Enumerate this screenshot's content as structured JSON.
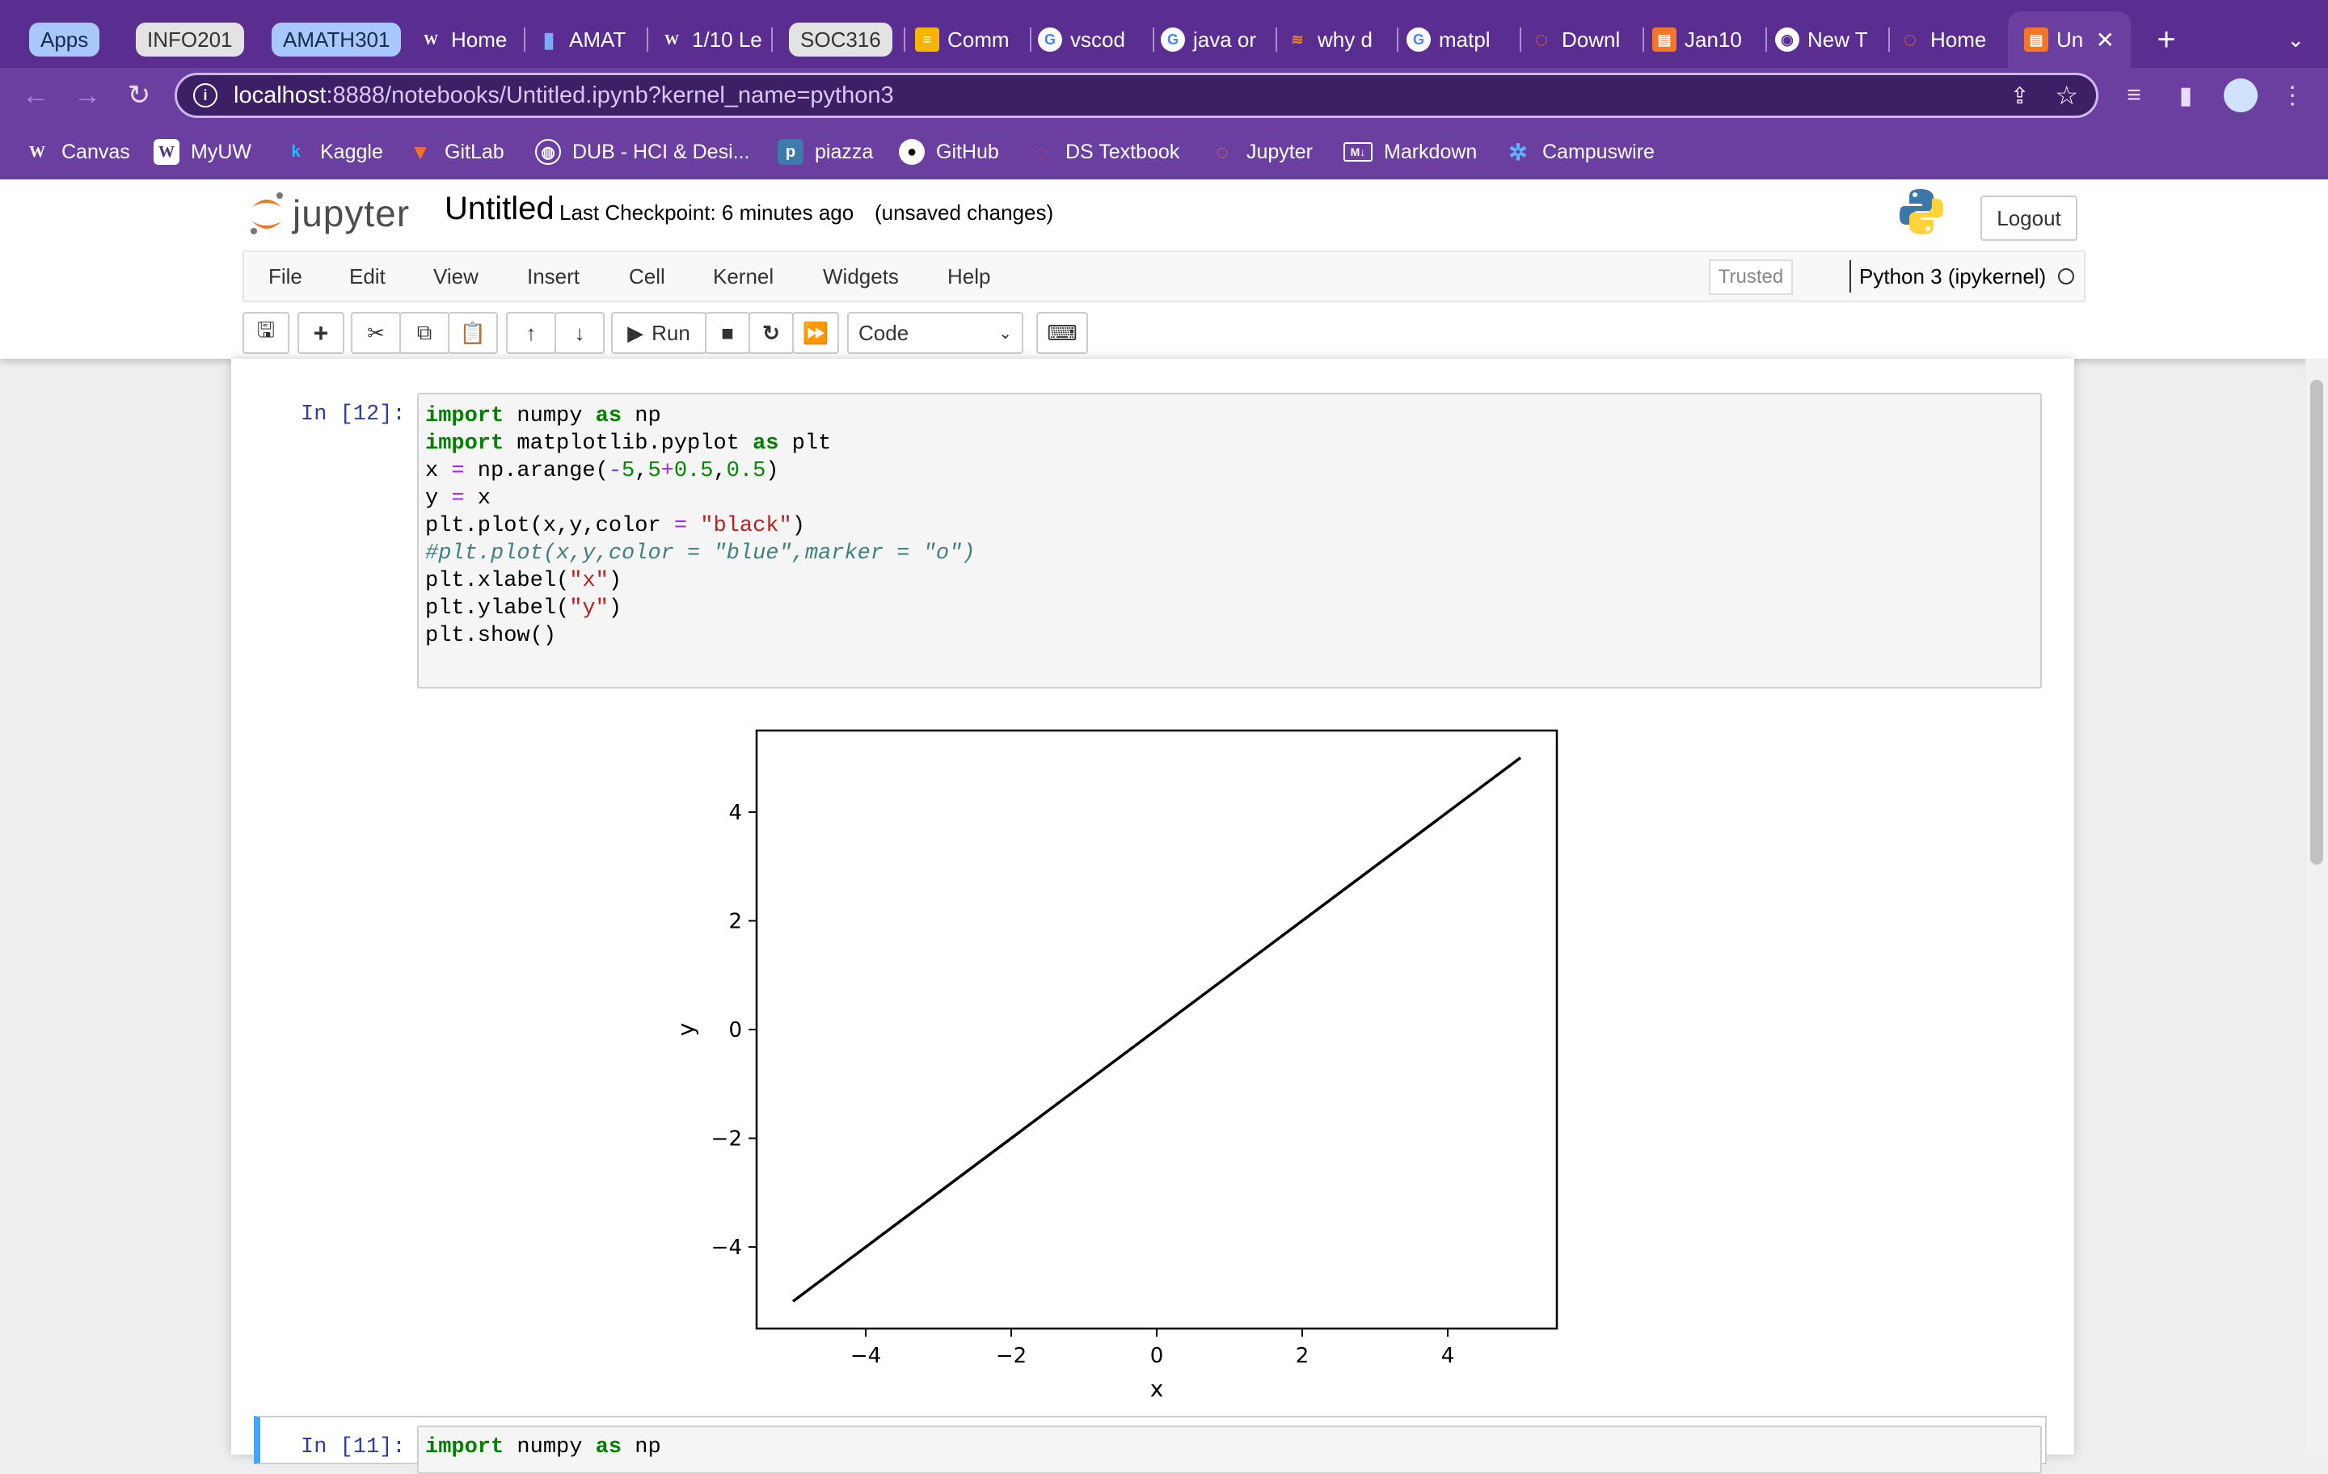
{
  "browser": {
    "tab_groups": [
      "Apps",
      "INFO201",
      "AMATH301",
      "SOC316"
    ],
    "tabs": [
      "Home",
      "AMAT",
      "1/10 Le",
      "Comm",
      "vscod",
      "java or",
      "why d",
      "matpl",
      "Downl",
      "Jan10",
      "New T",
      "Home",
      "Un"
    ],
    "url_host": "localhost",
    "url_rest": ":8888/notebooks/Untitled.ipynb?kernel_name=python3",
    "bookmarks": [
      "Canvas",
      "MyUW",
      "Kaggle",
      "GitLab",
      "DUB - HCI & Desi...",
      "piazza",
      "GitHub",
      "DS Textbook",
      "Jupyter",
      "Markdown",
      "Campuswire"
    ]
  },
  "jupyter": {
    "logo_text": "jupyter",
    "notebook_name": "Untitled",
    "checkpoint": "Last Checkpoint: 6 minutes ago",
    "unsaved": "(unsaved changes)",
    "logout": "Logout",
    "menu": [
      "File",
      "Edit",
      "View",
      "Insert",
      "Cell",
      "Kernel",
      "Widgets",
      "Help"
    ],
    "trusted": "Trusted",
    "kernel": "Python 3 (ipykernel)",
    "run_label": "Run",
    "cell_type": "Code"
  },
  "cell1": {
    "prompt": "In [12]:",
    "code": [
      "import numpy as np",
      "import matplotlib.pyplot as plt",
      "x = np.arange(-5,5+0.5,0.5)",
      "y = x",
      "plt.plot(x,y,color = \"black\")",
      "#plt.plot(x,y,color = \"blue\",marker = \"o\")",
      "plt.xlabel(\"x\")",
      "plt.ylabel(\"y\")",
      "plt.show()"
    ]
  },
  "cell2": {
    "prompt": "In [11]:",
    "first_line": "import numpy as np"
  },
  "chart_data": {
    "type": "line",
    "x": [
      -5,
      -4.5,
      -4,
      -3.5,
      -3,
      -2.5,
      -2,
      -1.5,
      -1,
      -0.5,
      0,
      0.5,
      1,
      1.5,
      2,
      2.5,
      3,
      3.5,
      4,
      4.5,
      5
    ],
    "series": [
      {
        "values": [
          -5,
          -4.5,
          -4,
          -3.5,
          -3,
          -2.5,
          -2,
          -1.5,
          -1,
          -0.5,
          0,
          0.5,
          1,
          1.5,
          2,
          2.5,
          3,
          3.5,
          4,
          4.5,
          5
        ],
        "color": "#000000"
      }
    ],
    "xlabel": "x",
    "ylabel": "y",
    "xlim": [
      -5.5,
      5.5
    ],
    "ylim": [
      -5.5,
      5.5
    ],
    "xticks": [
      -4,
      -2,
      0,
      2,
      4
    ],
    "yticks": [
      -4,
      -2,
      0,
      2,
      4
    ],
    "xtick_labels": [
      "−4",
      "−2",
      "0",
      "2",
      "4"
    ],
    "ytick_labels": [
      "−4",
      "−2",
      "0",
      "2",
      "4"
    ],
    "grid": false
  }
}
